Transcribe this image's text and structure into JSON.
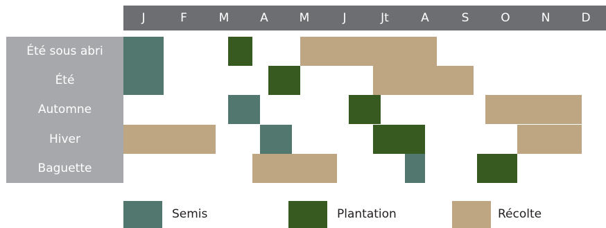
{
  "colors": {
    "semis": "#52776f",
    "plantation": "#375a21",
    "recolte": "#bea682",
    "header": "#6d6e71",
    "labels": "#a6a8ab"
  },
  "months": [
    "J",
    "F",
    "M",
    "A",
    "M",
    "J",
    "Jt",
    "A",
    "S",
    "O",
    "N",
    "D"
  ],
  "rows": [
    "Été sous abri",
    "Été",
    "Automne",
    "Hiver",
    "Baguette"
  ],
  "legend": {
    "semis": "Semis",
    "plantation": "Plantation",
    "recolte": "Récolte"
  },
  "calendar": [
    {
      "row": "Été sous abri",
      "type": "semis",
      "from": 0,
      "to": 1
    },
    {
      "row": "Été sous abri",
      "type": "plantation",
      "from": 2.6,
      "to": 3.2
    },
    {
      "row": "Été sous abri",
      "type": "recolte",
      "from": 4.4,
      "to": 7.8
    },
    {
      "row": "Été",
      "type": "semis",
      "from": 0,
      "to": 1
    },
    {
      "row": "Été",
      "type": "plantation",
      "from": 3.6,
      "to": 4.4
    },
    {
      "row": "Été",
      "type": "recolte",
      "from": 6.2,
      "to": 8.7
    },
    {
      "row": "Automne",
      "type": "semis",
      "from": 2.6,
      "to": 3.4
    },
    {
      "row": "Automne",
      "type": "plantation",
      "from": 5.6,
      "to": 6.4
    },
    {
      "row": "Automne",
      "type": "recolte",
      "from": 9.0,
      "to": 11.4
    },
    {
      "row": "Hiver",
      "type": "recolte",
      "from": 0,
      "to": 2.3
    },
    {
      "row": "Hiver",
      "type": "semis",
      "from": 3.4,
      "to": 4.2
    },
    {
      "row": "Hiver",
      "type": "plantation",
      "from": 6.2,
      "to": 7.5
    },
    {
      "row": "Hiver",
      "type": "recolte",
      "from": 9.8,
      "to": 11.4
    },
    {
      "row": "Baguette",
      "type": "recolte",
      "from": 3.2,
      "to": 5.3
    },
    {
      "row": "Baguette",
      "type": "semis",
      "from": 7.0,
      "to": 7.5
    },
    {
      "row": "Baguette",
      "type": "plantation",
      "from": 8.8,
      "to": 9.8
    }
  ]
}
